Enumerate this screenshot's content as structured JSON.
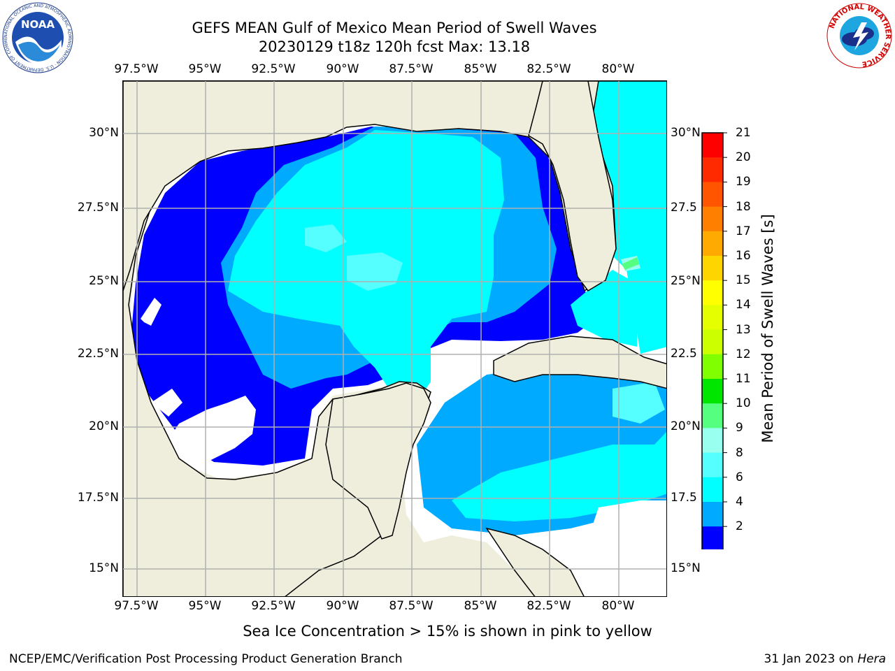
{
  "title": {
    "line1": "GEFS MEAN Gulf of Mexico Mean Period of Swell Waves",
    "line2": "20230129 t18z 120h fcst   Max: 13.18"
  },
  "axes": {
    "lon_labels": [
      "97.5°W",
      "95°W",
      "92.5°W",
      "90°W",
      "87.5°W",
      "85°W",
      "82.5°W",
      "80°W"
    ],
    "lat_labels_left": [
      "30°N",
      "27.5°N",
      "25°N",
      "22.5°N",
      "20°N",
      "17.5°N",
      "15°N"
    ],
    "lat_labels_right": [
      "30°N",
      "27.5",
      "25°N",
      "22.5",
      "20°N",
      "17.5",
      "15°N"
    ]
  },
  "colorbar": {
    "label": "Mean Period of Swell Waves [s]",
    "ticks": [
      "21",
      "20",
      "19",
      "18",
      "17",
      "16",
      "15",
      "14",
      "13",
      "12",
      "11",
      "10",
      "9",
      "8",
      "6",
      "4",
      "2"
    ],
    "colors": [
      "#ff0000",
      "#ff2a00",
      "#ff5500",
      "#ff8000",
      "#ffaa00",
      "#ffd500",
      "#ffff00",
      "#e6ff00",
      "#ccff00",
      "#80ff00",
      "#00e600",
      "#55ff80",
      "#99ffee",
      "#55ffff",
      "#00ffff",
      "#00aaff",
      "#0000ff"
    ]
  },
  "logos": {
    "noaa": {
      "text": "NOAA",
      "ring_text": "NATIONAL OCEANIC AND ATMOSPHERIC ADMINISTRATION · U.S. DEPARTMENT OF COMMERCE"
    },
    "nws": {
      "ring_text": "NATIONAL WEATHER SERVICE"
    }
  },
  "footer": {
    "note": "Sea Ice Concentration > 15% is shown in pink to yellow",
    "left": "NCEP/EMC/Verification Post Processing Product Generation Branch",
    "right_date": "31 Jan 2023 on ",
    "right_host": "Hera"
  }
}
